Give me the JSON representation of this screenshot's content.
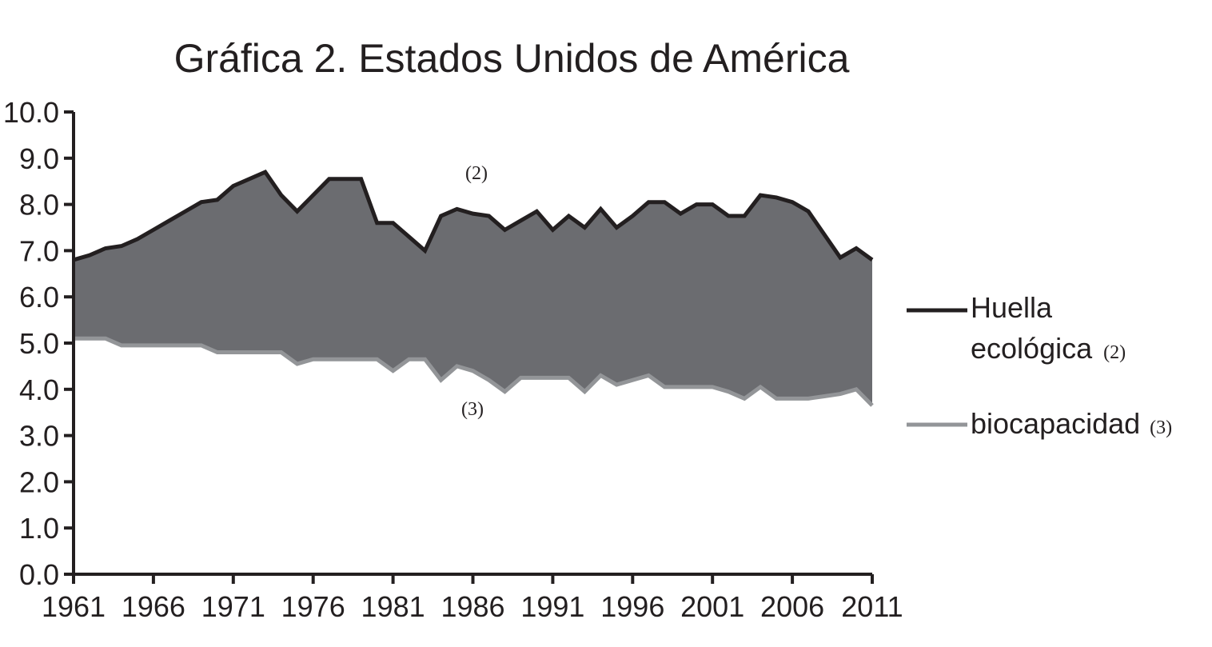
{
  "chart_data": {
    "type": "area",
    "title": "Gráfica 2. Estados Unidos de América",
    "xlabel": "",
    "ylabel": "",
    "xlim": [
      1961,
      2011
    ],
    "ylim": [
      0,
      10
    ],
    "x_ticks": [
      "1961",
      "1966",
      "1971",
      "1976",
      "1981",
      "1986",
      "1991",
      "1996",
      "2001",
      "2006",
      "2011"
    ],
    "y_ticks": [
      "0.0",
      "1.0",
      "2.0",
      "3.0",
      "4.0",
      "5.0",
      "6.0",
      "7.0",
      "8.0",
      "9.0",
      "10.0"
    ],
    "grid": false,
    "legend_position": "right",
    "fill_color": "#6b6c70",
    "series": [
      {
        "name": "Huella ecológica",
        "marker": "(2)",
        "color": "#231f20",
        "x": [
          1961,
          1962,
          1963,
          1964,
          1965,
          1966,
          1967,
          1968,
          1969,
          1970,
          1971,
          1972,
          1973,
          1974,
          1975,
          1976,
          1977,
          1978,
          1979,
          1980,
          1981,
          1982,
          1983,
          1984,
          1985,
          1986,
          1987,
          1988,
          1989,
          1990,
          1991,
          1992,
          1993,
          1994,
          1995,
          1996,
          1997,
          1998,
          1999,
          2000,
          2001,
          2002,
          2003,
          2004,
          2005,
          2006,
          2007,
          2008,
          2009,
          2010,
          2011
        ],
        "values": [
          6.8,
          6.9,
          7.05,
          7.1,
          7.25,
          7.45,
          7.65,
          7.85,
          8.05,
          8.1,
          8.4,
          8.55,
          8.7,
          8.2,
          7.85,
          8.2,
          8.55,
          8.55,
          8.55,
          7.6,
          7.6,
          7.3,
          7.0,
          7.75,
          7.9,
          7.8,
          7.75,
          7.45,
          7.65,
          7.85,
          7.45,
          7.75,
          7.5,
          7.9,
          7.5,
          7.75,
          8.05,
          8.05,
          7.8,
          8.0,
          8.0,
          7.75,
          7.75,
          8.2,
          8.15,
          8.05,
          7.85,
          7.35,
          6.85,
          7.05,
          6.8
        ]
      },
      {
        "name": "biocapacidad",
        "marker": "(3)",
        "color": "#939598",
        "x": [
          1961,
          1962,
          1963,
          1964,
          1965,
          1966,
          1967,
          1968,
          1969,
          1970,
          1971,
          1972,
          1973,
          1974,
          1975,
          1976,
          1977,
          1978,
          1979,
          1980,
          1981,
          1982,
          1983,
          1984,
          1985,
          1986,
          1987,
          1988,
          1989,
          1990,
          1991,
          1992,
          1993,
          1994,
          1995,
          1996,
          1997,
          1998,
          1999,
          2000,
          2001,
          2002,
          2003,
          2004,
          2005,
          2006,
          2007,
          2008,
          2009,
          2010,
          2011
        ],
        "values": [
          5.1,
          5.1,
          5.1,
          4.95,
          4.95,
          4.95,
          4.95,
          4.95,
          4.95,
          4.8,
          4.8,
          4.8,
          4.8,
          4.8,
          4.55,
          4.65,
          4.65,
          4.65,
          4.65,
          4.65,
          4.4,
          4.65,
          4.65,
          4.2,
          4.5,
          4.4,
          4.2,
          3.95,
          4.25,
          4.25,
          4.25,
          4.25,
          3.95,
          4.3,
          4.1,
          4.2,
          4.3,
          4.05,
          4.05,
          4.05,
          4.05,
          3.95,
          3.8,
          4.05,
          3.8,
          3.8,
          3.8,
          3.85,
          3.9,
          4.0,
          3.65
        ]
      }
    ],
    "legend": [
      {
        "label_line1": "Huella",
        "label_line2": "ecológica",
        "marker": "(2)"
      },
      {
        "label_line1": "biocapacidad",
        "marker": "(3)"
      }
    ]
  }
}
